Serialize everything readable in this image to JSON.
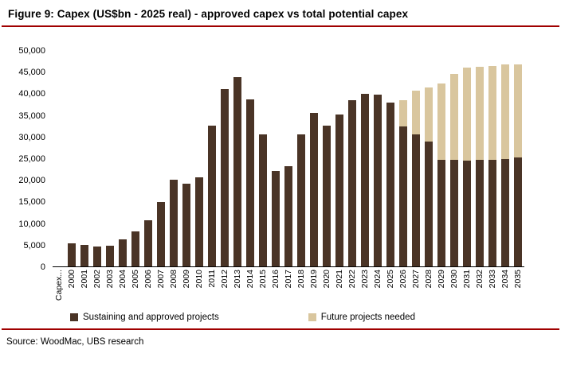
{
  "figure": {
    "title": "Figure 9: Capex (US$bn - 2025 real) - approved capex vs total potential capex",
    "source": "Source: WoodMac, UBS research"
  },
  "colors": {
    "accent_line": "#a00000",
    "axis": "#000000",
    "sustaining_bar": "#4a3426",
    "future_bar": "#d9c69e"
  },
  "chart_data": {
    "type": "bar",
    "stacked": true,
    "title": "Capex (US$bn - 2025 real) - approved capex vs total potential capex",
    "xlabel": "",
    "ylabel": "",
    "ylim": [
      0,
      50000
    ],
    "ytick_step": 5000,
    "grid": false,
    "legend_position": "bottom",
    "categories": [
      "Capex...",
      "2000",
      "2001",
      "2002",
      "2003",
      "2004",
      "2005",
      "2006",
      "2007",
      "2008",
      "2009",
      "2010",
      "2011",
      "2012",
      "2013",
      "2014",
      "2015",
      "2016",
      "2017",
      "2018",
      "2019",
      "2020",
      "2021",
      "2022",
      "2023",
      "2024",
      "2025",
      "2026",
      "2027",
      "2028",
      "2029",
      "2030",
      "2031",
      "2032",
      "2033",
      "2034",
      "2035"
    ],
    "series": [
      {
        "name": "Sustaining and approved projects",
        "color": "#4a3426",
        "values": [
          0,
          5300,
          5000,
          4600,
          4800,
          6300,
          8100,
          10700,
          14900,
          20100,
          19200,
          20700,
          32600,
          41200,
          43900,
          38700,
          30700,
          22200,
          23200,
          30700,
          35600,
          32700,
          35200,
          38500,
          40000,
          39800,
          38000,
          32500,
          30700,
          29000,
          24700,
          24700,
          24600,
          24700,
          24800,
          25000,
          25200
        ]
      },
      {
        "name": "Future projects needed",
        "color": "#d9c69e",
        "values": [
          0,
          0,
          0,
          0,
          0,
          0,
          0,
          0,
          0,
          0,
          0,
          0,
          0,
          0,
          0,
          0,
          0,
          0,
          0,
          0,
          0,
          0,
          0,
          0,
          0,
          0,
          0,
          6000,
          10000,
          12500,
          17800,
          20000,
          21600,
          21600,
          21700,
          21800,
          21700
        ]
      }
    ]
  }
}
